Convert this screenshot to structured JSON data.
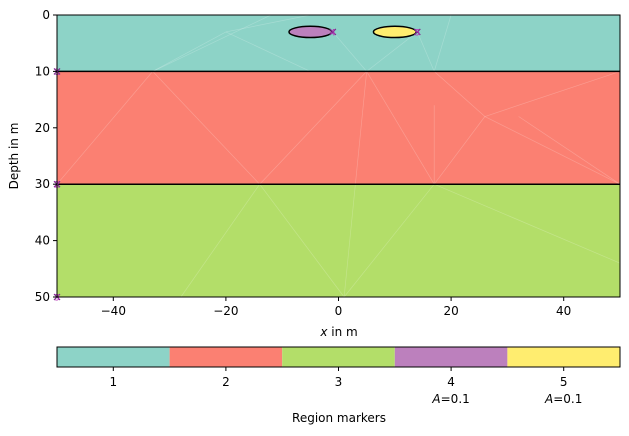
{
  "chart_data": {
    "type": "heatmap",
    "title": "",
    "xlabel_var": "x",
    "xlabel_rest": " in m",
    "ylabel": "Depth in m",
    "xlim": [
      -50,
      50
    ],
    "ylim": [
      0,
      50
    ],
    "y_inverted": true,
    "xticks": [
      -40,
      -20,
      0,
      20,
      40
    ],
    "yticks": [
      0,
      10,
      20,
      30,
      40,
      50
    ],
    "layers": [
      {
        "marker": 1,
        "top": 0,
        "bottom": 10,
        "color": "#8dd3c7"
      },
      {
        "marker": 2,
        "top": 10,
        "bottom": 30,
        "color": "#fb8072"
      },
      {
        "marker": 3,
        "top": 30,
        "bottom": 50,
        "color": "#b3de69"
      }
    ],
    "inclusions": [
      {
        "marker": 4,
        "cx": -5,
        "cy": 3,
        "rx": 3.8,
        "ry": 1.0,
        "color": "#bc80bd"
      },
      {
        "marker": 5,
        "cx": 10,
        "cy": 3,
        "rx": 3.8,
        "ry": 1.0,
        "color": "#ffed6f"
      }
    ],
    "region_labels": [
      {
        "x": -50,
        "y": 10,
        "text": "1"
      },
      {
        "x": -50,
        "y": 30,
        "text": "2"
      },
      {
        "x": -50,
        "y": 50,
        "text": "3"
      },
      {
        "x": -1,
        "y": 3,
        "text": "4"
      },
      {
        "x": 14,
        "y": 3,
        "text": "5"
      }
    ],
    "colorbar": {
      "label": "Region markers",
      "entries": [
        {
          "label": "1",
          "sub": "",
          "color": "#8dd3c7"
        },
        {
          "label": "2",
          "sub": "",
          "color": "#fb8072"
        },
        {
          "label": "3",
          "sub": "",
          "color": "#b3de69"
        },
        {
          "label": "4",
          "sub": "A=0.1",
          "color": "#bc80bd"
        },
        {
          "label": "5",
          "sub": "A=0.1",
          "color": "#ffed6f"
        }
      ]
    }
  }
}
